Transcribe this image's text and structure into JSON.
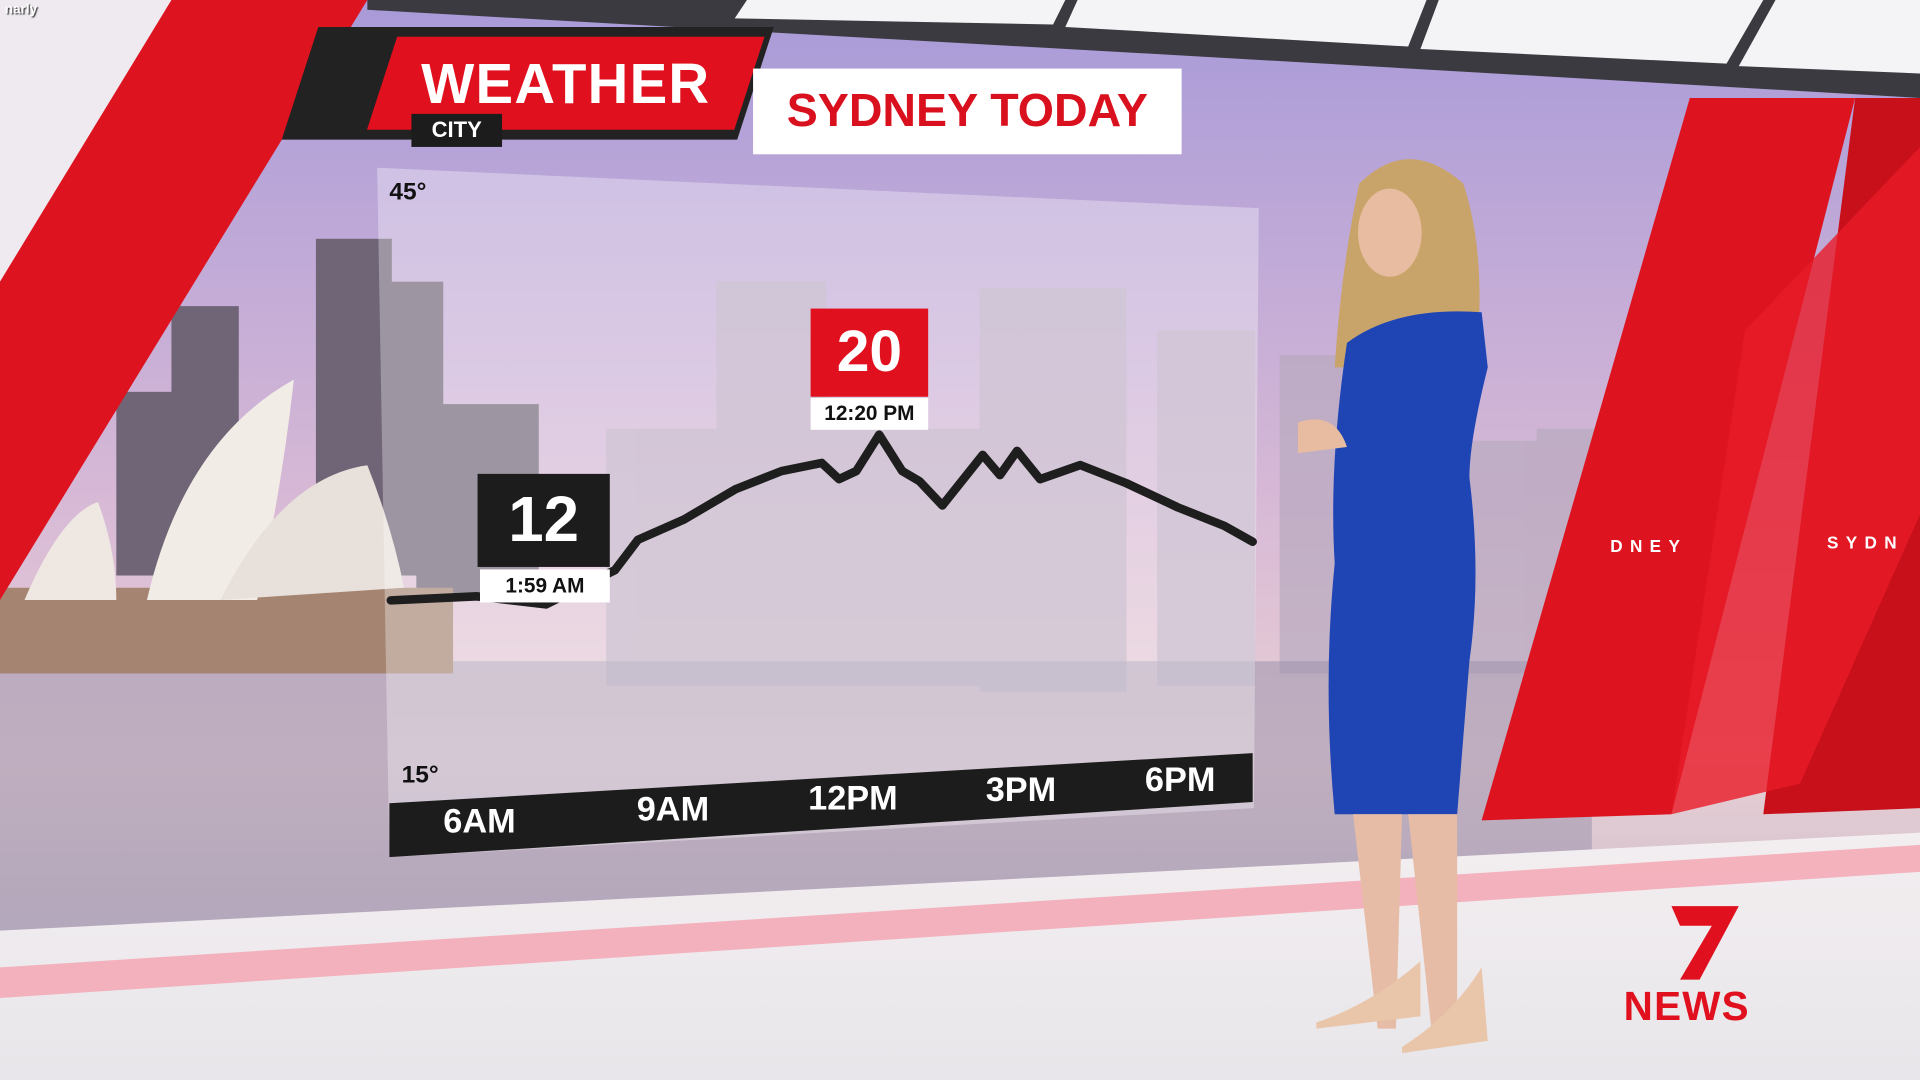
{
  "overlay_tag": "narly",
  "header": {
    "weather_label": "WEATHER",
    "title": "SYDNEY TODAY",
    "sub_tag": "CITY"
  },
  "studio_wall": {
    "left_text": "DNEY",
    "right_text": "SYDN"
  },
  "brand": {
    "logo_mark": "7",
    "logo_text": "NEWS",
    "color": "#e0101e"
  },
  "colors": {
    "accent_red": "#e0101e",
    "line": "#1e1e1e",
    "axis_bar": "#1c1c1c",
    "dress": "#1f45b5"
  },
  "chart_data": {
    "type": "line",
    "title": "SYDNEY TODAY",
    "y_tick_labels": [
      "45°",
      "15°"
    ],
    "x_tick_labels": [
      "6AM",
      "9AM",
      "12PM",
      "3PM",
      "6PM"
    ],
    "x_unit": "hour of day",
    "series": [
      {
        "x": [
          4.3,
          5.8,
          7.0,
          8.2,
          8.6,
          9.4,
          10.3,
          11.1,
          11.8,
          12.1,
          12.4,
          12.8,
          13.2,
          13.5,
          13.9,
          14.6,
          14.9,
          15.2,
          15.6,
          16.3,
          17.1,
          18.0,
          18.8,
          19.3
        ],
        "y": [
          11.8,
          12.0,
          11.6,
          13.3,
          14.8,
          15.8,
          17.3,
          18.2,
          18.6,
          17.8,
          18.2,
          20.0,
          18.2,
          17.7,
          16.5,
          19.0,
          18.0,
          19.2,
          17.8,
          18.5,
          17.6,
          16.4,
          15.5,
          14.7
        ]
      }
    ],
    "annotations": [
      {
        "value": "12",
        "time": "1:59 AM",
        "kind": "min",
        "color": "#1c1c1c"
      },
      {
        "value": "20",
        "time": "12:20 PM",
        "kind": "max",
        "color": "#e0101e"
      }
    ],
    "grid": false,
    "legend": "none"
  }
}
